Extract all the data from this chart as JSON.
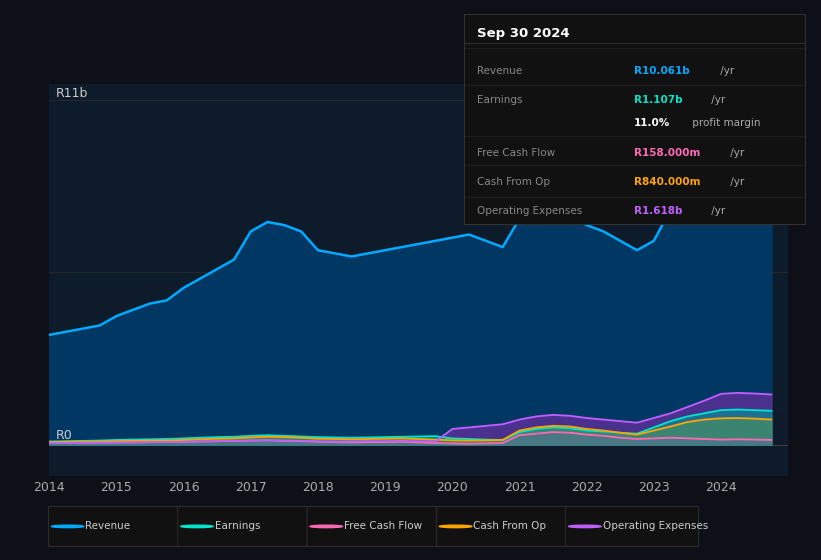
{
  "background_color": "#0d1117",
  "plot_bg_color": "#0d1b2a",
  "years": [
    2014,
    2014.25,
    2014.5,
    2014.75,
    2015,
    2015.25,
    2015.5,
    2015.75,
    2016,
    2016.25,
    2016.5,
    2016.75,
    2017,
    2017.25,
    2017.5,
    2017.75,
    2018,
    2018.25,
    2018.5,
    2018.75,
    2019,
    2019.25,
    2019.5,
    2019.75,
    2020,
    2020.25,
    2020.5,
    2020.75,
    2021,
    2021.25,
    2021.5,
    2021.75,
    2022,
    2022.25,
    2022.5,
    2022.75,
    2023,
    2023.25,
    2023.5,
    2023.75,
    2024,
    2024.25,
    2024.5,
    2024.75
  ],
  "revenue": [
    3.5,
    3.6,
    3.7,
    3.8,
    4.1,
    4.3,
    4.5,
    4.6,
    5.0,
    5.3,
    5.6,
    5.9,
    6.8,
    7.1,
    7.0,
    6.8,
    6.2,
    6.1,
    6.0,
    6.1,
    6.2,
    6.3,
    6.4,
    6.5,
    6.6,
    6.7,
    6.5,
    6.3,
    7.2,
    7.4,
    7.5,
    7.3,
    7.0,
    6.8,
    6.5,
    6.2,
    6.5,
    7.5,
    8.5,
    9.5,
    10.5,
    10.8,
    10.6,
    10.3
  ],
  "earnings": [
    0.1,
    0.11,
    0.12,
    0.13,
    0.15,
    0.16,
    0.17,
    0.18,
    0.2,
    0.22,
    0.24,
    0.25,
    0.28,
    0.3,
    0.28,
    0.26,
    0.24,
    0.23,
    0.22,
    0.23,
    0.24,
    0.25,
    0.26,
    0.27,
    0.2,
    0.18,
    0.16,
    0.15,
    0.4,
    0.5,
    0.55,
    0.52,
    0.45,
    0.42,
    0.38,
    0.35,
    0.55,
    0.75,
    0.9,
    1.0,
    1.1,
    1.12,
    1.1,
    1.08
  ],
  "free_cash_flow": [
    0.05,
    0.06,
    0.05,
    0.06,
    0.07,
    0.07,
    0.08,
    0.08,
    0.09,
    0.1,
    0.11,
    0.12,
    0.13,
    0.14,
    0.12,
    0.11,
    0.09,
    0.08,
    0.07,
    0.08,
    0.08,
    0.09,
    0.07,
    0.05,
    0.04,
    0.03,
    0.04,
    0.05,
    0.3,
    0.35,
    0.4,
    0.38,
    0.32,
    0.28,
    0.22,
    0.18,
    0.2,
    0.22,
    0.2,
    0.18,
    0.16,
    0.17,
    0.16,
    0.15
  ],
  "cash_from_op": [
    0.08,
    0.09,
    0.1,
    0.1,
    0.11,
    0.12,
    0.13,
    0.13,
    0.15,
    0.17,
    0.19,
    0.2,
    0.23,
    0.25,
    0.24,
    0.22,
    0.19,
    0.18,
    0.17,
    0.18,
    0.19,
    0.2,
    0.18,
    0.16,
    0.14,
    0.13,
    0.14,
    0.15,
    0.45,
    0.55,
    0.6,
    0.58,
    0.5,
    0.45,
    0.38,
    0.32,
    0.45,
    0.58,
    0.72,
    0.8,
    0.84,
    0.85,
    0.83,
    0.8
  ],
  "operating_expenses": [
    0.05,
    0.05,
    0.06,
    0.06,
    0.07,
    0.07,
    0.08,
    0.08,
    0.09,
    0.1,
    0.11,
    0.12,
    0.13,
    0.14,
    0.13,
    0.12,
    0.11,
    0.1,
    0.1,
    0.11,
    0.11,
    0.12,
    0.11,
    0.1,
    0.5,
    0.55,
    0.6,
    0.65,
    0.8,
    0.9,
    0.95,
    0.92,
    0.85,
    0.8,
    0.75,
    0.7,
    0.85,
    1.0,
    1.2,
    1.4,
    1.62,
    1.65,
    1.63,
    1.6
  ],
  "revenue_color": "#00aaff",
  "earnings_color": "#00e5cc",
  "free_cash_flow_color": "#ff69b4",
  "cash_from_op_color": "#ffa500",
  "operating_expenses_color": "#bf5fff",
  "ylabel": "R11b",
  "y0label": "R0",
  "xlim": [
    2014,
    2025
  ],
  "ylim": [
    -1.0,
    11.5
  ],
  "info_box": {
    "date": "Sep 30 2024",
    "rows": [
      {
        "label": "Revenue",
        "value": "R10.061b",
        "unit": " /yr",
        "value_color": "#00aaff"
      },
      {
        "label": "Earnings",
        "value": "R1.107b",
        "unit": " /yr",
        "value_color": "#00e5cc"
      },
      {
        "label": "",
        "value": "11.0%",
        "unit": " profit margin",
        "value_color": "#ffffff"
      },
      {
        "label": "Free Cash Flow",
        "value": "R158.000m",
        "unit": " /yr",
        "value_color": "#ff69b4"
      },
      {
        "label": "Cash From Op",
        "value": "R840.000m",
        "unit": " /yr",
        "value_color": "#ffa500"
      },
      {
        "label": "Operating Expenses",
        "value": "R1.618b",
        "unit": " /yr",
        "value_color": "#bf5fff"
      }
    ]
  },
  "legend_items": [
    {
      "label": "Revenue",
      "color": "#00aaff"
    },
    {
      "label": "Earnings",
      "color": "#00e5cc"
    },
    {
      "label": "Free Cash Flow",
      "color": "#ff69b4"
    },
    {
      "label": "Cash From Op",
      "color": "#ffa500"
    },
    {
      "label": "Operating Expenses",
      "color": "#bf5fff"
    }
  ]
}
